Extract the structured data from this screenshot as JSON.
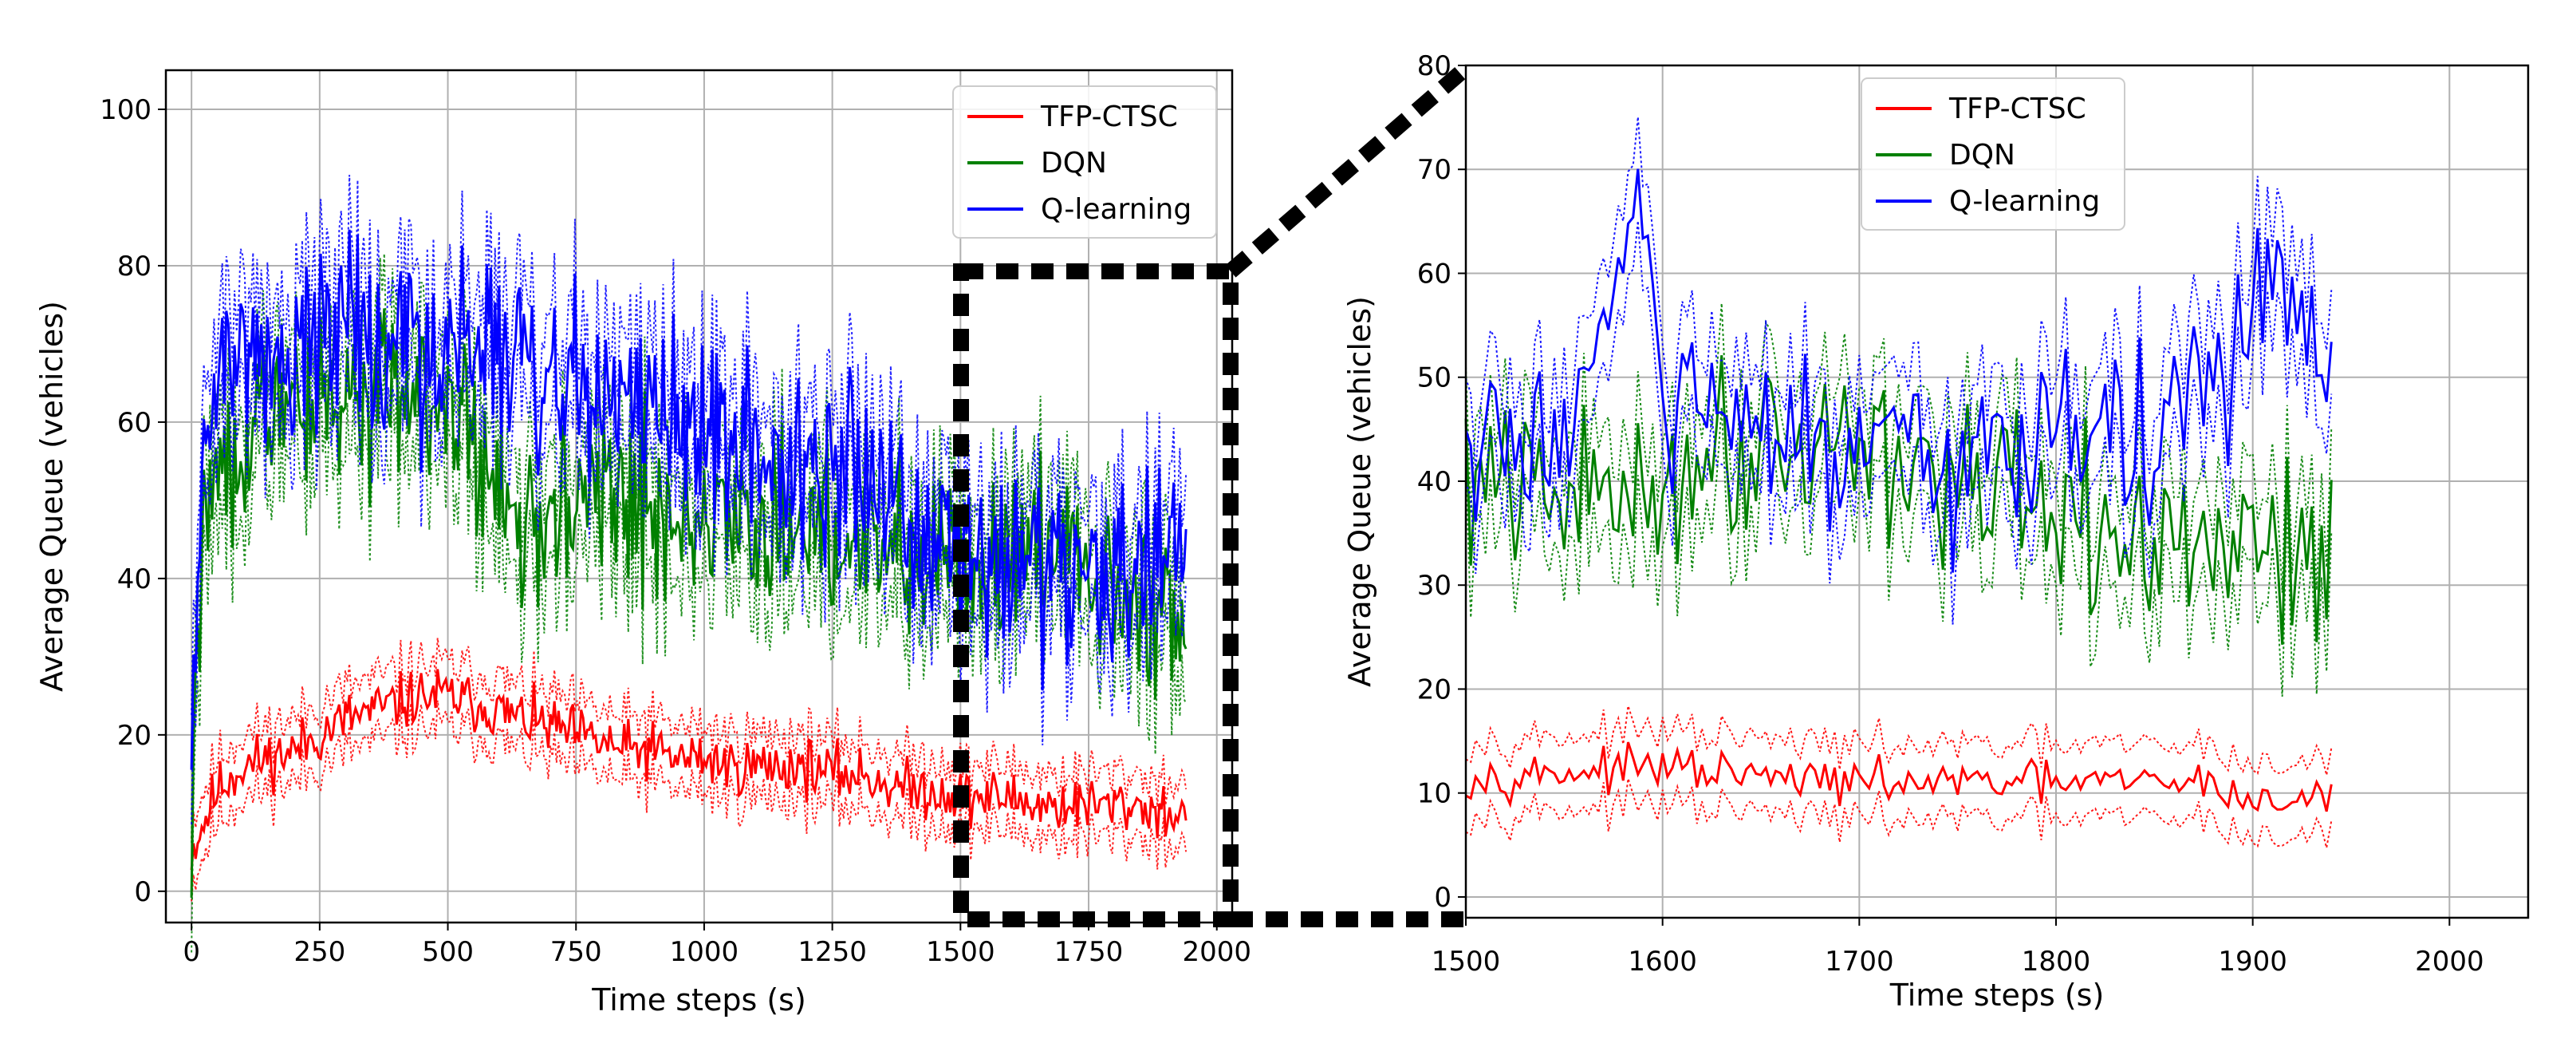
{
  "chart_data": [
    {
      "type": "line",
      "xlabel": "Time steps (s)",
      "ylabel": "Average Queue (vehicles)",
      "xlim": [
        -50,
        2030
      ],
      "ylim": [
        -4,
        105
      ],
      "xticks": [
        0,
        250,
        500,
        750,
        1000,
        1250,
        1500,
        1750,
        2000
      ],
      "yticks": [
        0,
        20,
        40,
        60,
        80,
        100
      ],
      "grid": true,
      "legend_position": "top-right",
      "series": [
        {
          "name": "TFP-CTSC",
          "color": "#ff0000",
          "band": 4,
          "x": [
            0,
            25,
            50,
            100,
            150,
            200,
            250,
            300,
            350,
            400,
            450,
            500,
            550,
            600,
            650,
            700,
            750,
            800,
            850,
            900,
            950,
            1000,
            1050,
            1100,
            1150,
            1200,
            1250,
            1300,
            1350,
            1400,
            1450,
            1500,
            1550,
            1600,
            1650,
            1700,
            1750,
            1800,
            1850,
            1900,
            1940
          ],
          "values": [
            5,
            9,
            13,
            16,
            17,
            18,
            20,
            22,
            23,
            24,
            25,
            25,
            24,
            23,
            22,
            21,
            20,
            19,
            18,
            18,
            17,
            17,
            16,
            16,
            16,
            16,
            15,
            15,
            14,
            13,
            13,
            12,
            12,
            12,
            11,
            11,
            11,
            11,
            11,
            10,
            10
          ],
          "noise": 3
        },
        {
          "name": "DQN",
          "color": "#008000",
          "band": 7,
          "x": [
            0,
            25,
            50,
            100,
            150,
            200,
            250,
            300,
            350,
            400,
            450,
            500,
            550,
            600,
            650,
            700,
            750,
            800,
            850,
            900,
            950,
            1000,
            1050,
            1100,
            1150,
            1200,
            1250,
            1300,
            1350,
            1400,
            1450,
            1500,
            1550,
            1600,
            1650,
            1700,
            1750,
            1800,
            1850,
            1900,
            1940
          ],
          "values": [
            10,
            50,
            55,
            58,
            60,
            62,
            63,
            64,
            64,
            64,
            63,
            62,
            55,
            50,
            48,
            48,
            49,
            50,
            50,
            49,
            47,
            45,
            46,
            47,
            46,
            45,
            44,
            44,
            43,
            42,
            41,
            42,
            42,
            43,
            44,
            43,
            40,
            37,
            35,
            38,
            35
          ],
          "noise": 9
        },
        {
          "name": "Q-learning",
          "color": "#0000ff",
          "band": 7,
          "x": [
            0,
            25,
            50,
            100,
            150,
            200,
            250,
            300,
            350,
            400,
            450,
            500,
            550,
            600,
            650,
            700,
            750,
            800,
            850,
            900,
            950,
            1000,
            1050,
            1100,
            1150,
            1200,
            1250,
            1300,
            1350,
            1400,
            1450,
            1500,
            1550,
            1600,
            1650,
            1700,
            1750,
            1800,
            1850,
            1900,
            1940
          ],
          "values": [
            20,
            58,
            62,
            66,
            68,
            70,
            72,
            73,
            72,
            71,
            70,
            70,
            69,
            68,
            67,
            67,
            66,
            64,
            63,
            62,
            60,
            59,
            58,
            57,
            56,
            55,
            54,
            52,
            50,
            48,
            47,
            45,
            44,
            44,
            43,
            42,
            41,
            42,
            41,
            43,
            40
          ],
          "noise": 10
        }
      ]
    },
    {
      "type": "line",
      "xlabel": "Time steps (s)",
      "ylabel": "Average Queue (vehicles)",
      "xlim": [
        1500,
        2040
      ],
      "ylim": [
        -2,
        80
      ],
      "xticks": [
        1500,
        1600,
        1700,
        1800,
        1900,
        2000
      ],
      "yticks": [
        0,
        10,
        20,
        30,
        40,
        50,
        60,
        70,
        80
      ],
      "grid": true,
      "legend_position": "top-left",
      "series": [
        {
          "name": "TFP-CTSC",
          "color": "#ff0000",
          "band": 3.5,
          "x": [
            1500,
            1550,
            1600,
            1650,
            1700,
            1750,
            1800,
            1850,
            1880,
            1900,
            1940
          ],
          "values": [
            11.5,
            12,
            12.5,
            11.5,
            11,
            11,
            11,
            11,
            11,
            9,
            9.5
          ],
          "noise": 1.6
        },
        {
          "name": "DQN",
          "color": "#008000",
          "band": 5,
          "x": [
            1500,
            1550,
            1600,
            1650,
            1700,
            1750,
            1800,
            1850,
            1900,
            1940
          ],
          "values": [
            40,
            38,
            40,
            45,
            44,
            40,
            35,
            34,
            33,
            34
          ],
          "noise": 7
        },
        {
          "name": "Q-learning",
          "color": "#0000ff",
          "band": 5,
          "x": [
            1500,
            1550,
            1590,
            1600,
            1650,
            1700,
            1750,
            1800,
            1850,
            1900,
            1910,
            1940
          ],
          "values": [
            42,
            45,
            65,
            48,
            44,
            42,
            40,
            47,
            43,
            55,
            62,
            47
          ],
          "noise": 7
        }
      ]
    }
  ]
}
